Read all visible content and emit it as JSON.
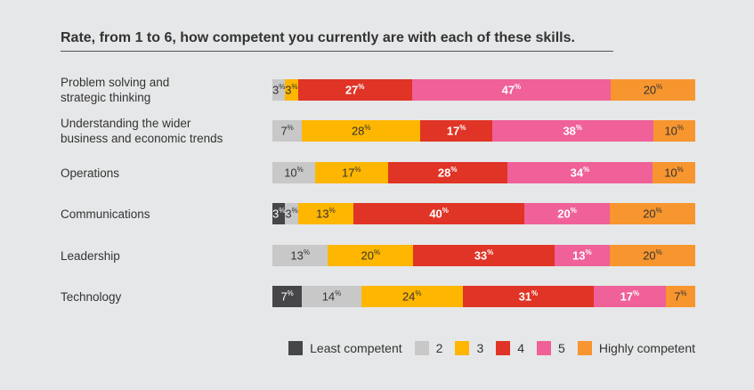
{
  "chart_data": {
    "type": "bar",
    "orientation": "horizontal-stacked-100",
    "title": "Rate, from 1 to 6, how competent you currently are with each of these skills.",
    "categories": [
      "Problem solving and\nstrategic thinking",
      "Understanding the wider\nbusiness and economic trends",
      "Operations",
      "Communications",
      "Leadership",
      "Technology"
    ],
    "series": [
      {
        "name": "Least competent",
        "color": "#464649",
        "text": "#ffffff",
        "values": [
          0,
          0,
          0,
          3,
          0,
          7
        ]
      },
      {
        "name": "2",
        "color": "#c8c8c9",
        "text": "#333333",
        "values": [
          3,
          7,
          10,
          3,
          13,
          14
        ]
      },
      {
        "name": "3",
        "color": "#ffb600",
        "text": "#333333",
        "values": [
          3,
          28,
          17,
          13,
          20,
          24
        ]
      },
      {
        "name": "4",
        "color": "#e03426",
        "text": "#ffffff",
        "values": [
          27,
          17,
          28,
          40,
          33,
          31
        ]
      },
      {
        "name": "5",
        "color": "#ef6198",
        "text": "#ffffff",
        "values": [
          47,
          38,
          34,
          20,
          13,
          17
        ]
      },
      {
        "name": "Highly competent",
        "color": "#f7952f",
        "text": "#333333",
        "values": [
          20,
          10,
          10,
          20,
          20,
          7
        ]
      }
    ],
    "unit": "%"
  }
}
